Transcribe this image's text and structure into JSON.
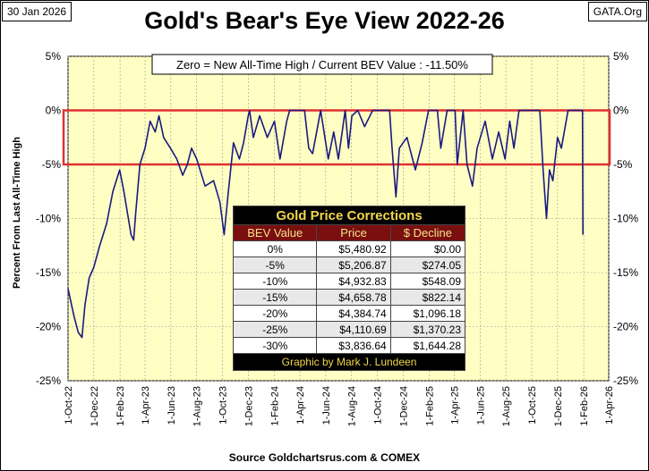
{
  "header": {
    "date": "30 Jan 2026",
    "site": "GATA.Org",
    "title": "Gold's Bear's Eye View 2022-26"
  },
  "annotation": "Zero = New All-Time High / Current  BEV Value : -11.50%",
  "source": "Source Goldchartsrus.com & COMEX",
  "chart_data": {
    "type": "line",
    "title": "Gold's Bear's Eye View 2022-26",
    "ylabel": "Percent  From  Last  All-Time  High",
    "xlabel": "",
    "ylim": [
      -25,
      5
    ],
    "y_ticks": [
      "5%",
      "0%",
      "-5%",
      "-10%",
      "-15%",
      "-20%",
      "-25%"
    ],
    "x_ticks": [
      "1-Oct-22",
      "1-Dec-22",
      "1-Feb-23",
      "1-Apr-23",
      "1-Jun-23",
      "1-Aug-23",
      "1-Oct-23",
      "1-Dec-23",
      "1-Feb-24",
      "1-Apr-24",
      "1-Jun-24",
      "1-Aug-24",
      "1-Oct-24",
      "1-Dec-24",
      "1-Feb-25",
      "1-Apr-25",
      "1-Jun-25",
      "1-Aug-25",
      "1-Oct-25",
      "1-Dec-25",
      "1-Feb-26",
      "1-Apr-26"
    ],
    "highlight_band": [
      0,
      -5
    ],
    "series": [
      {
        "color": "#1a1a80",
        "points": [
          [
            "2022-10-01",
            -16.5
          ],
          [
            "2022-10-15",
            -19.0
          ],
          [
            "2022-10-25",
            -20.5
          ],
          [
            "2022-11-03",
            -21.0
          ],
          [
            "2022-11-10",
            -18.0
          ],
          [
            "2022-11-20",
            -15.5
          ],
          [
            "2022-12-01",
            -14.5
          ],
          [
            "2022-12-15",
            -12.5
          ],
          [
            "2022-12-31",
            -10.5
          ],
          [
            "2023-01-15",
            -7.5
          ],
          [
            "2023-01-31",
            -5.5
          ],
          [
            "2023-02-10",
            -7.5
          ],
          [
            "2023-02-27",
            -11.5
          ],
          [
            "2023-03-05",
            -12.0
          ],
          [
            "2023-03-10",
            -9.5
          ],
          [
            "2023-03-20",
            -5.0
          ],
          [
            "2023-04-01",
            -3.5
          ],
          [
            "2023-04-13",
            -1.0
          ],
          [
            "2023-04-25",
            -2.0
          ],
          [
            "2023-05-04",
            -0.5
          ],
          [
            "2023-05-15",
            -2.5
          ],
          [
            "2023-05-31",
            -3.5
          ],
          [
            "2023-06-15",
            -4.5
          ],
          [
            "2023-06-29",
            -6.0
          ],
          [
            "2023-07-10",
            -5.0
          ],
          [
            "2023-07-20",
            -3.5
          ],
          [
            "2023-08-01",
            -4.5
          ],
          [
            "2023-08-21",
            -7.0
          ],
          [
            "2023-09-10",
            -6.5
          ],
          [
            "2023-09-25",
            -8.5
          ],
          [
            "2023-10-05",
            -11.5
          ],
          [
            "2023-10-15",
            -7.5
          ],
          [
            "2023-10-27",
            -3.0
          ],
          [
            "2023-11-10",
            -4.5
          ],
          [
            "2023-11-20",
            -3.0
          ],
          [
            "2023-12-01",
            -0.5
          ],
          [
            "2023-12-04",
            0.0
          ],
          [
            "2023-12-13",
            -2.5
          ],
          [
            "2023-12-28",
            -0.5
          ],
          [
            "2024-01-15",
            -2.5
          ],
          [
            "2024-02-01",
            -1.0
          ],
          [
            "2024-02-14",
            -4.5
          ],
          [
            "2024-03-01",
            -1.0
          ],
          [
            "2024-03-08",
            0.0
          ],
          [
            "2024-04-01",
            0.0
          ],
          [
            "2024-04-12",
            0.0
          ],
          [
            "2024-04-22",
            -3.5
          ],
          [
            "2024-05-01",
            -4.0
          ],
          [
            "2024-05-20",
            0.0
          ],
          [
            "2024-06-07",
            -4.5
          ],
          [
            "2024-06-20",
            -2.0
          ],
          [
            "2024-07-01",
            -4.5
          ],
          [
            "2024-07-17",
            0.0
          ],
          [
            "2024-07-25",
            -3.5
          ],
          [
            "2024-08-02",
            -0.5
          ],
          [
            "2024-08-16",
            0.0
          ],
          [
            "2024-09-01",
            -1.5
          ],
          [
            "2024-09-20",
            0.0
          ],
          [
            "2024-10-30",
            0.0
          ],
          [
            "2024-11-05",
            -3.5
          ],
          [
            "2024-11-14",
            -8.0
          ],
          [
            "2024-11-22",
            -3.5
          ],
          [
            "2024-12-10",
            -2.5
          ],
          [
            "2024-12-30",
            -5.5
          ],
          [
            "2025-01-15",
            -3.0
          ],
          [
            "2025-01-30",
            0.0
          ],
          [
            "2025-02-20",
            0.0
          ],
          [
            "2025-02-28",
            -3.5
          ],
          [
            "2025-03-15",
            0.0
          ],
          [
            "2025-04-03",
            0.0
          ],
          [
            "2025-04-08",
            -5.0
          ],
          [
            "2025-04-22",
            0.0
          ],
          [
            "2025-05-01",
            -5.0
          ],
          [
            "2025-05-14",
            -7.0
          ],
          [
            "2025-05-25",
            -3.5
          ],
          [
            "2025-06-13",
            -1.0
          ],
          [
            "2025-06-30",
            -4.5
          ],
          [
            "2025-07-15",
            -2.0
          ],
          [
            "2025-07-30",
            -4.5
          ],
          [
            "2025-08-10",
            -1.0
          ],
          [
            "2025-08-20",
            -3.5
          ],
          [
            "2025-09-01",
            0.0
          ],
          [
            "2025-10-20",
            0.0
          ],
          [
            "2025-10-28",
            -5.5
          ],
          [
            "2025-11-05",
            -10.0
          ],
          [
            "2025-11-12",
            -5.5
          ],
          [
            "2025-11-20",
            -6.5
          ],
          [
            "2025-12-01",
            -2.5
          ],
          [
            "2025-12-10",
            -3.5
          ],
          [
            "2025-12-26",
            0.0
          ],
          [
            "2026-01-15",
            0.0
          ],
          [
            "2026-01-29",
            0.0
          ],
          [
            "2026-01-30",
            -11.5
          ]
        ]
      }
    ]
  },
  "table": {
    "title": "Gold Price Corrections",
    "headers": [
      "BEV Value",
      "Price",
      "$ Decline"
    ],
    "rows": [
      [
        "0%",
        "$5,480.92",
        "$0.00"
      ],
      [
        "-5%",
        "$5,206.87",
        "$274.05"
      ],
      [
        "-10%",
        "$4,932.83",
        "$548.09"
      ],
      [
        "-15%",
        "$4,658.78",
        "$822.14"
      ],
      [
        "-20%",
        "$4,384.74",
        "$1,096.18"
      ],
      [
        "-25%",
        "$4,110.69",
        "$1,370.23"
      ],
      [
        "-30%",
        "$3,836.64",
        "$1,644.28"
      ]
    ],
    "credit": "Graphic by Mark J. Lundeen"
  },
  "colors": {
    "plot_background": "#ffffc4",
    "line": "#1a1a80",
    "band_outline": "#e03030",
    "grid": "#999999"
  }
}
